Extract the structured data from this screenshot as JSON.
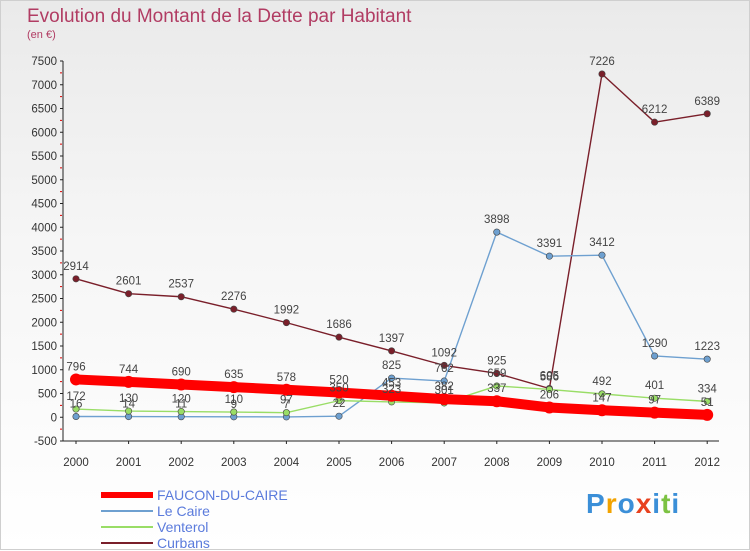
{
  "title": "Evolution du Montant de la Dette par Habitant",
  "subtitle": "(en €)",
  "brand": {
    "letters": [
      "P",
      "r",
      "o",
      "x",
      "i",
      "t",
      "i"
    ],
    "colors": [
      "#3b8fd8",
      "#f2a300",
      "#3b8fd8",
      "#e8411e",
      "#3b8fd8",
      "#7cc242",
      "#3b8fd8"
    ]
  },
  "chart_data": {
    "type": "line",
    "x": [
      "2000",
      "2001",
      "2002",
      "2003",
      "2004",
      "2005",
      "2006",
      "2007",
      "2008",
      "2009",
      "2010",
      "2011",
      "2012"
    ],
    "ylim": [
      -500,
      7500
    ],
    "yticks": [
      -500,
      0,
      500,
      1000,
      1500,
      2000,
      2500,
      3000,
      3500,
      4000,
      4500,
      5000,
      5500,
      6000,
      6500,
      7000,
      7500
    ],
    "grid": false,
    "legend_position": "bottom-left",
    "series": [
      {
        "name": "FAUCON-DU-CAIRE",
        "color": "#ff0000",
        "values": [
          796,
          744,
          690,
          635,
          578,
          520,
          453,
          382,
          337,
          206,
          147,
          97,
          51
        ]
      },
      {
        "name": "Le Caire",
        "color": "#6ea0d0",
        "values": [
          16,
          14,
          11,
          9,
          7,
          22,
          825,
          762,
          3898,
          3391,
          3412,
          1290,
          1223
        ]
      },
      {
        "name": "Venterol",
        "color": "#99dd66",
        "values": [
          172,
          130,
          120,
          110,
          97,
          350,
          323,
          301,
          659,
          586,
          492,
          401,
          334
        ]
      },
      {
        "name": "Curbans",
        "color": "#7a1f2a",
        "values": [
          2914,
          2601,
          2537,
          2276,
          1992,
          1686,
          1397,
          1092,
          925,
          605,
          7226,
          6212,
          6389
        ]
      }
    ]
  }
}
